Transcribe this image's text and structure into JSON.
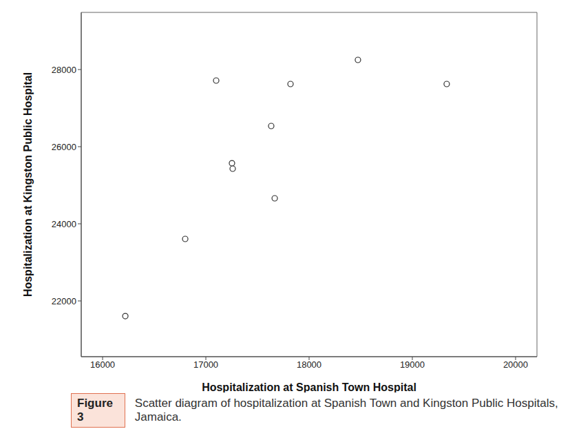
{
  "chart_data": {
    "type": "scatter",
    "title": "Scatter diagram of hospitalization at Spanish Town and Kingston Public Hospitals, Jamaica.",
    "annotations": [
      "Figure 3"
    ],
    "x_label": "Hospitalization at Spanish Town Hospital",
    "y_label": "Hospitalization at Kingston Public Hospital",
    "x": [
      16220,
      16800,
      17100,
      17253,
      17260,
      17633,
      17667,
      17820,
      18473,
      19333
    ],
    "values": [
      21607,
      23607,
      27714,
      25571,
      25429,
      26536,
      24661,
      27625,
      28250,
      27625
    ],
    "color": "#333333",
    "marker": "hollow_circle",
    "xlim": [
      15793,
      20207
    ],
    "ylim": [
      20554,
      29482
    ],
    "xticks": [
      16000,
      17000,
      18000,
      19000,
      20000
    ],
    "yticks": [
      22000,
      24000,
      26000,
      28000
    ],
    "grid": false
  }
}
